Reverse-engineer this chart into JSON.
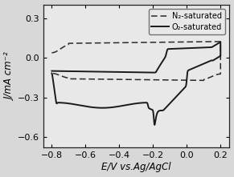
{
  "xlim": [
    -0.85,
    0.25
  ],
  "ylim": [
    -0.68,
    0.4
  ],
  "xticks": [
    -0.8,
    -0.6,
    -0.4,
    -0.2,
    0.0,
    0.2
  ],
  "yticks": [
    -0.6,
    -0.3,
    0.0,
    0.3
  ],
  "xlabel": "E/V vs.Ag/AgCl",
  "ylabel": "J/mA cm⁻²",
  "legend_labels": [
    "N₂-saturated",
    "O₂-saturated"
  ],
  "bg_color": "#f0f0f0",
  "line_color": "#1a1a1a",
  "label_fontsize": 8.5,
  "tick_fontsize": 8
}
